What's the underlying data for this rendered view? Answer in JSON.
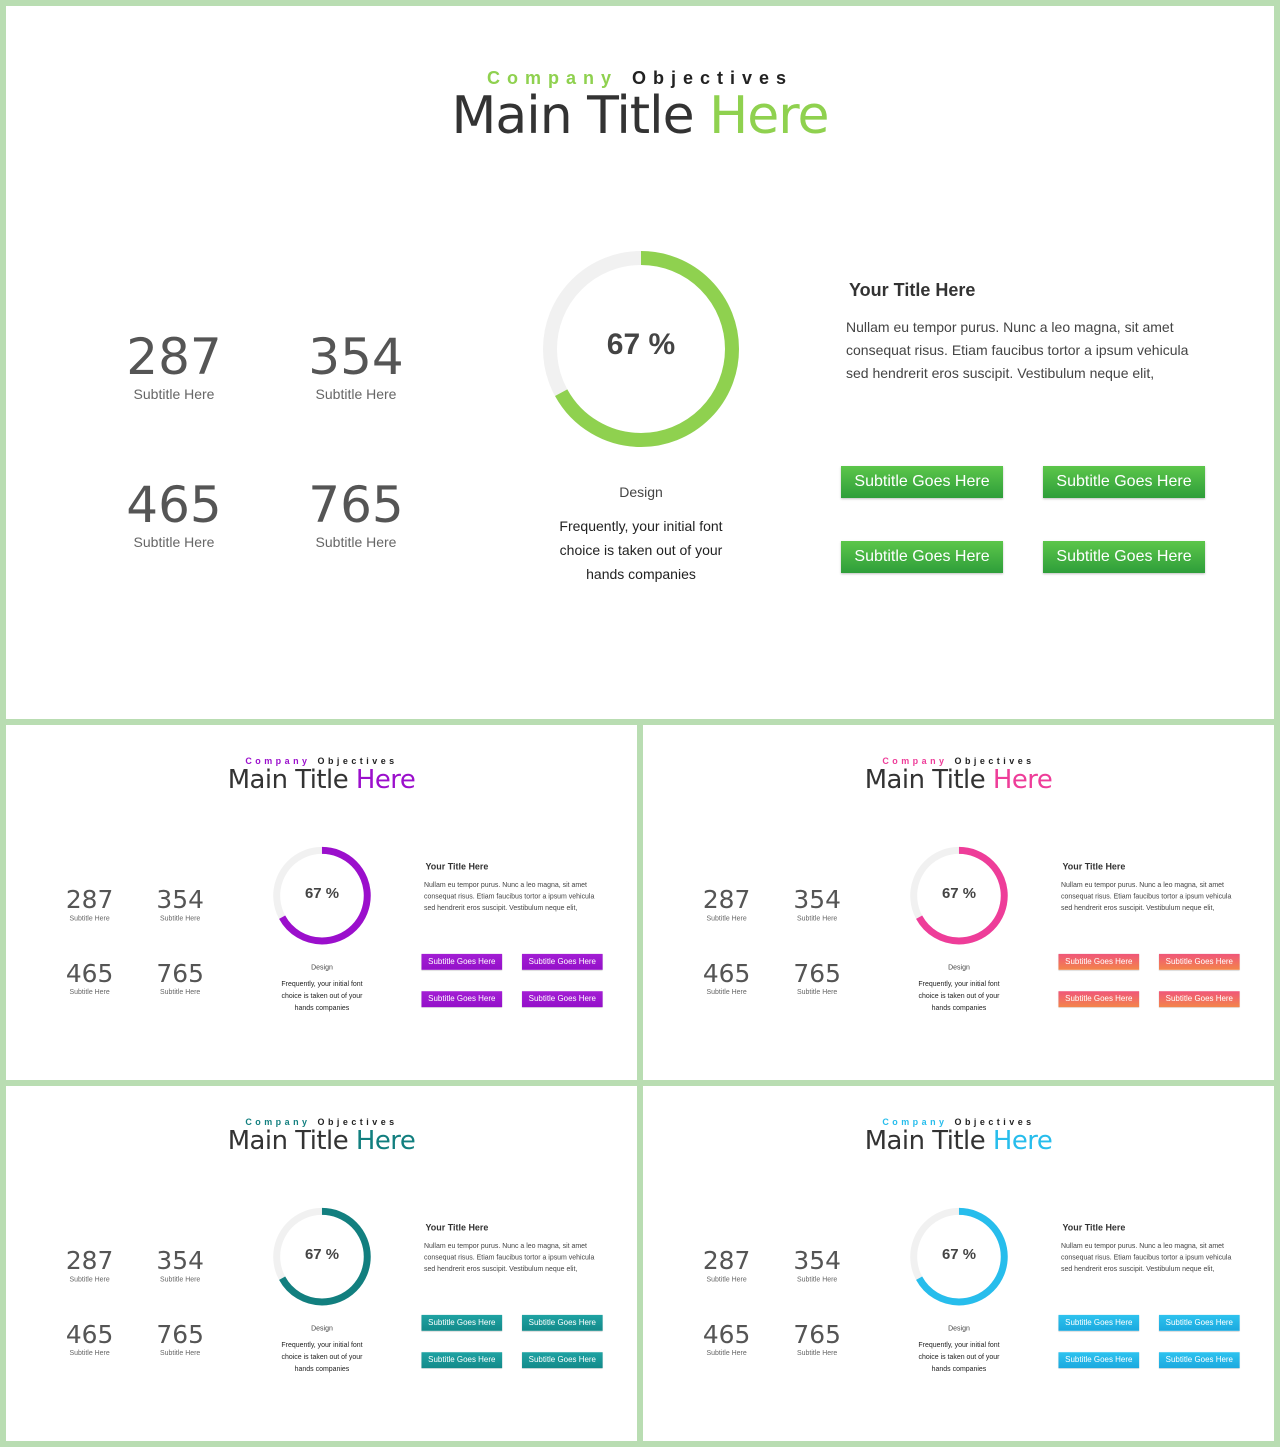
{
  "slide": {
    "kicker_word1": "Company",
    "kicker_word2": "Objectives",
    "title_word1": "Main Title",
    "title_word2": "Here",
    "stats": [
      {
        "value": "287",
        "label": "Subtitle Here"
      },
      {
        "value": "354",
        "label": "Subtitle Here"
      },
      {
        "value": "465",
        "label": "Subtitle Here"
      },
      {
        "value": "765",
        "label": "Subtitle Here"
      }
    ],
    "progress_percent": 67,
    "progress_label": "67 %",
    "design_label": "Design",
    "design_text": "Frequently, your initial font choice is taken out of your hands companies",
    "info_title": "Your Title Here",
    "info_body": "Nullam eu tempor purus. Nunc a leo magna, sit amet consequat risus. Etiam faucibus tortor a ipsum vehicula sed hendrerit eros suscipit. Vestibulum neque elit,",
    "buttons": [
      "Subtitle Goes Here",
      "Subtitle Goes Here",
      "Subtitle Goes Here",
      "Subtitle Goes Here"
    ]
  },
  "themes": [
    {
      "name": "green",
      "accent": "#8fd14f",
      "button_from": "#5cc64a",
      "button_to": "#2e9e3a"
    },
    {
      "name": "purple",
      "accent": "#9b0fcc",
      "button_from": "#a31ed4",
      "button_to": "#9410c9"
    },
    {
      "name": "pink",
      "accent": "#ee3d99",
      "button_from": "#f0567a",
      "button_to": "#f3854a"
    },
    {
      "name": "teal",
      "accent": "#127f7f",
      "button_from": "#1fa3a3",
      "button_to": "#138a8a"
    },
    {
      "name": "sky",
      "accent": "#27bdec",
      "button_from": "#2ec3ef",
      "button_to": "#1ba9df"
    }
  ],
  "colors": {
    "frame": "#b9ddb2",
    "track": "#f1f1f1"
  }
}
